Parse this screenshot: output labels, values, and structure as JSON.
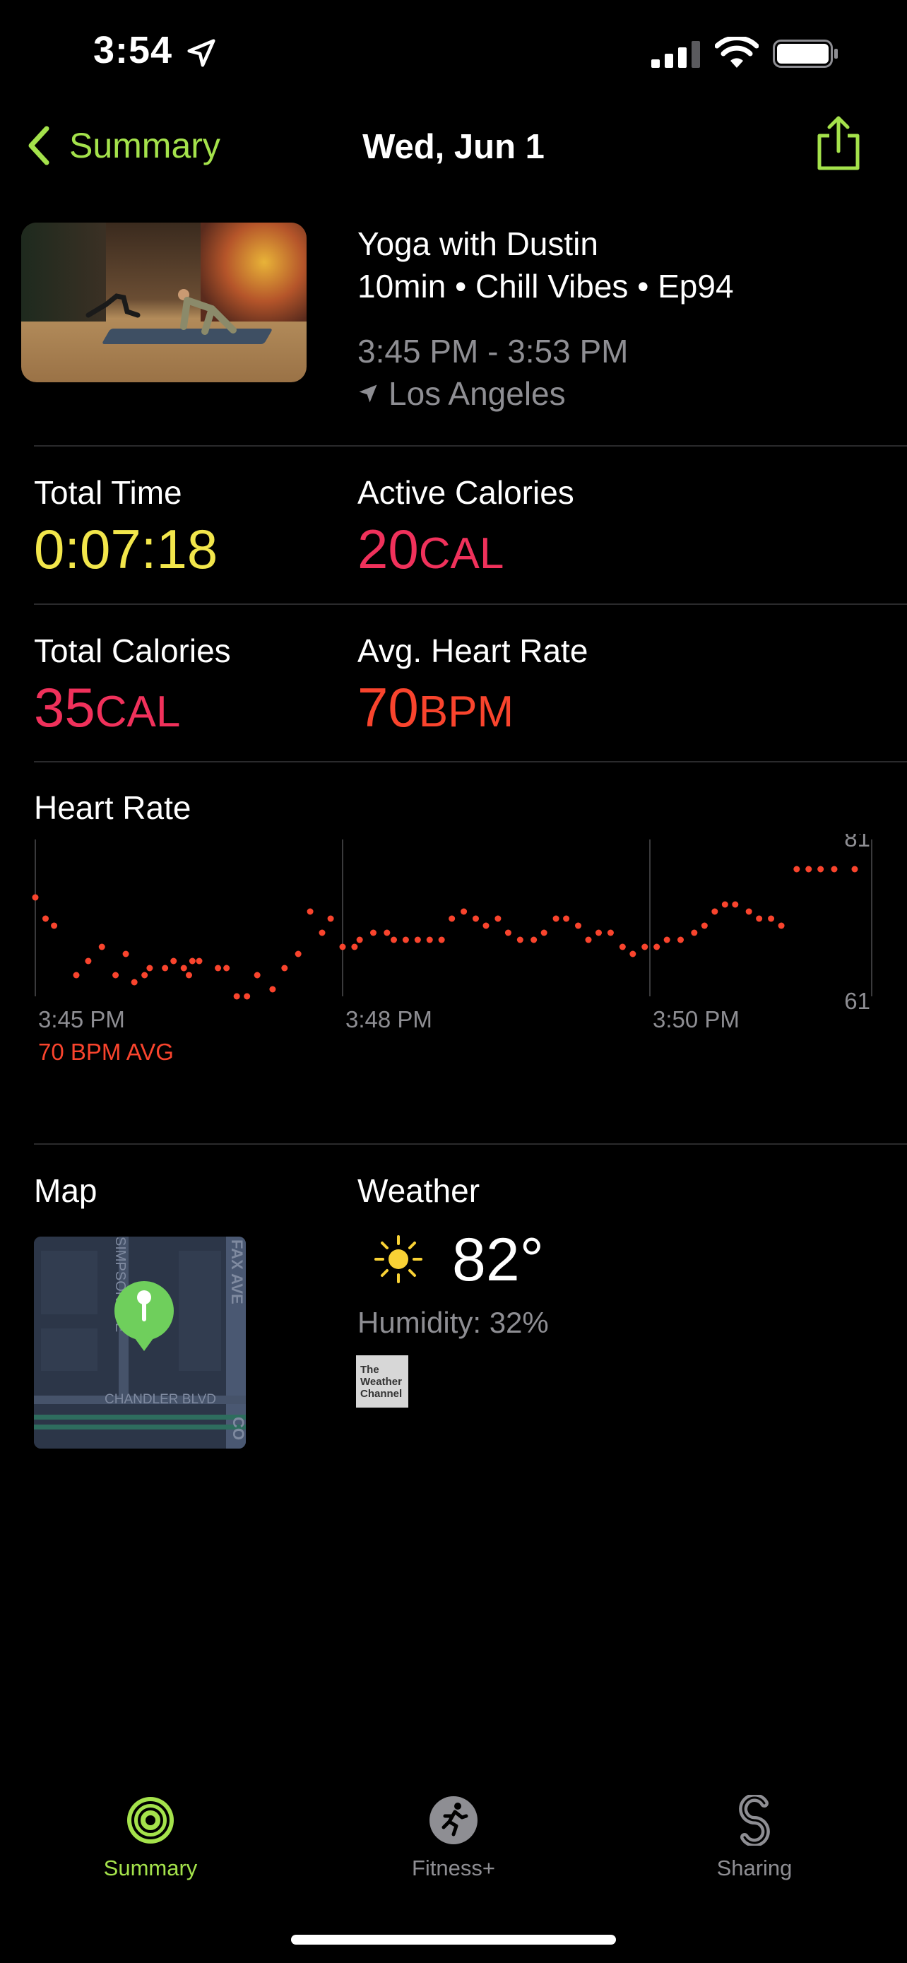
{
  "status_bar": {
    "time": "3:54"
  },
  "nav": {
    "back_label": "Summary",
    "title": "Wed, Jun 1"
  },
  "workout": {
    "title": "Yoga with Dustin",
    "subtitle": "10min • Chill Vibes • Ep94",
    "time_range": "3:45 PM - 3:53 PM",
    "location": "Los Angeles"
  },
  "metrics": [
    {
      "label": "Total Time",
      "value": "0:07:18",
      "unit": ""
    },
    {
      "label": "Active Calories",
      "value": "20",
      "unit": "CAL"
    },
    {
      "label": "Total Calories",
      "value": "35",
      "unit": "CAL"
    },
    {
      "label": "Avg. Heart Rate",
      "value": "70",
      "unit": "BPM"
    }
  ],
  "heart_rate": {
    "label": "Heart Rate",
    "avg_label": "70 BPM AVG",
    "accent": "#f9442d"
  },
  "chart_data": {
    "type": "scatter",
    "title": "",
    "x_tick_labels": [
      "3:45 PM",
      "3:48 PM",
      "3:50 PM"
    ],
    "y_tick_labels": [
      "81",
      "61"
    ],
    "ylim": [
      61,
      81
    ],
    "xlim": [
      0,
      480
    ],
    "x_unit": "seconds since 3:45 PM",
    "series": [
      {
        "values": [
          [
            0,
            75
          ],
          [
            6,
            72
          ],
          [
            11,
            71
          ],
          [
            24,
            64
          ],
          [
            31,
            66
          ],
          [
            39,
            68
          ],
          [
            47,
            64
          ],
          [
            53,
            67
          ],
          [
            58,
            63
          ],
          [
            64,
            64
          ],
          [
            67,
            65
          ],
          [
            76,
            65
          ],
          [
            81,
            66
          ],
          [
            87,
            65
          ],
          [
            90,
            64
          ],
          [
            92,
            66
          ],
          [
            96,
            66
          ],
          [
            107,
            65
          ],
          [
            112,
            65
          ],
          [
            118,
            61
          ],
          [
            124,
            61
          ],
          [
            130,
            64
          ],
          [
            139,
            62
          ],
          [
            146,
            65
          ],
          [
            154,
            67
          ],
          [
            161,
            73
          ],
          [
            168,
            70
          ],
          [
            173,
            72
          ],
          [
            180,
            68
          ],
          [
            187,
            68
          ],
          [
            190,
            69
          ],
          [
            198,
            70
          ],
          [
            206,
            70
          ],
          [
            210,
            69
          ],
          [
            217,
            69
          ],
          [
            224,
            69
          ],
          [
            231,
            69
          ],
          [
            238,
            69
          ],
          [
            244,
            72
          ],
          [
            251,
            73
          ],
          [
            258,
            72
          ],
          [
            264,
            71
          ],
          [
            271,
            72
          ],
          [
            277,
            70
          ],
          [
            284,
            69
          ],
          [
            292,
            69
          ],
          [
            298,
            70
          ],
          [
            305,
            72
          ],
          [
            311,
            72
          ],
          [
            318,
            71
          ],
          [
            324,
            69
          ],
          [
            330,
            70
          ],
          [
            337,
            70
          ],
          [
            344,
            68
          ],
          [
            350,
            67
          ],
          [
            357,
            68
          ],
          [
            364,
            68
          ],
          [
            370,
            69
          ],
          [
            378,
            69
          ],
          [
            386,
            70
          ],
          [
            392,
            71
          ],
          [
            398,
            73
          ],
          [
            404,
            74
          ],
          [
            410,
            74
          ],
          [
            418,
            73
          ],
          [
            424,
            72
          ],
          [
            431,
            72
          ],
          [
            437,
            71
          ],
          [
            446,
            79
          ],
          [
            453,
            79
          ],
          [
            460,
            79
          ],
          [
            468,
            79
          ],
          [
            480,
            79
          ]
        ]
      }
    ]
  },
  "map": {
    "label": "Map",
    "street_1": "CHANDLER BLVD",
    "street_2": "FAX AVE",
    "street_3": "SIMPSON AVE",
    "street_4": "CO"
  },
  "weather": {
    "label": "Weather",
    "temperature": "82°",
    "humidity": "Humidity: 32%",
    "provider_line1": "The",
    "provider_line2": "Weather",
    "provider_line3": "Channel"
  },
  "tabs": [
    {
      "label": "Summary",
      "active": true
    },
    {
      "label": "Fitness+",
      "active": false
    },
    {
      "label": "Sharing",
      "active": false
    }
  ]
}
